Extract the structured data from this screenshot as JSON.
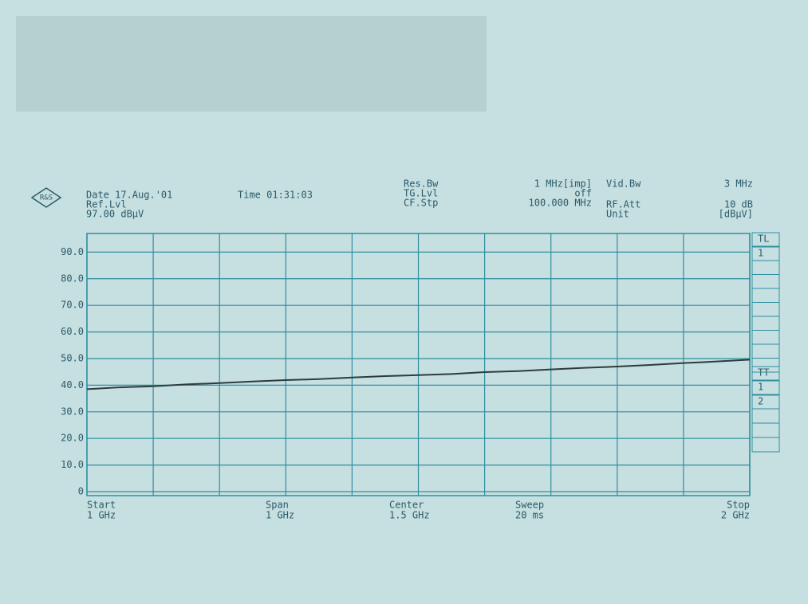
{
  "logo": "R&S",
  "header": {
    "date": "Date 17.Aug.'01",
    "time": "Time 01:31:03",
    "ref_label": "Ref.Lvl",
    "ref_value": "97.00 dBµV",
    "res_bw_label": "Res.Bw",
    "res_bw_value": "1 MHz[imp]",
    "tg_lvl_label": "TG.Lvl",
    "tg_lvl_value": "off",
    "cf_stp_label": "CF.Stp",
    "cf_stp_value": "100.000 MHz",
    "vid_bw_label": "Vid.Bw",
    "vid_bw_value": "3 MHz",
    "rf_att_label": "RF.Att",
    "rf_att_value": "10 dB",
    "unit_label": "Unit",
    "unit_value": "[dBµV]"
  },
  "side_labels": [
    "TL",
    "1",
    "TT",
    "1",
    "2"
  ],
  "footer": [
    {
      "label": "Start",
      "value": "1 GHz"
    },
    {
      "label": "Span",
      "value": "1 GHz"
    },
    {
      "label": "Center",
      "value": "1.5 GHz"
    },
    {
      "label": "Sweep",
      "value": "20 ms"
    },
    {
      "label": "Stop",
      "value": "2 GHz"
    }
  ],
  "chart_data": {
    "type": "line",
    "x": [
      1,
      1.05,
      1.1,
      1.15,
      1.2,
      1.25,
      1.3,
      1.35,
      1.4,
      1.45,
      1.5,
      1.55,
      1.6,
      1.65,
      1.7,
      1.75,
      1.8,
      1.85,
      1.9,
      1.95,
      2
    ],
    "series": [
      {
        "name": "1",
        "color": "#2c3c3c",
        "values": [
          38.5,
          39.2,
          39.6,
          40.3,
          40.8,
          41.4,
          41.9,
          42.3,
          42.9,
          43.4,
          43.8,
          44.2,
          44.9,
          45.3,
          45.9,
          46.5,
          47.0,
          47.6,
          48.3,
          48.9,
          49.6
        ]
      }
    ],
    "xlim": [
      1,
      2
    ],
    "xticks": [
      1,
      1.1,
      1.2,
      1.3,
      1.4,
      1.5,
      1.6,
      1.7,
      1.8,
      1.9,
      2
    ],
    "ylim": [
      0,
      97
    ],
    "yticks": [
      0,
      {
        "value": 10,
        "label": "10.0"
      },
      {
        "value": 20,
        "label": "20.0"
      },
      {
        "value": 30,
        "label": "30.0"
      },
      {
        "value": 40,
        "label": "40.0"
      },
      {
        "value": 50,
        "label": "50.0"
      },
      {
        "value": 60,
        "label": "60.0"
      },
      {
        "value": 70,
        "label": "70.0"
      },
      {
        "value": 80,
        "label": "80.0"
      },
      {
        "value": 90,
        "label": "90.0"
      }
    ],
    "grid": true,
    "grid_color": "#2f8fa0"
  }
}
